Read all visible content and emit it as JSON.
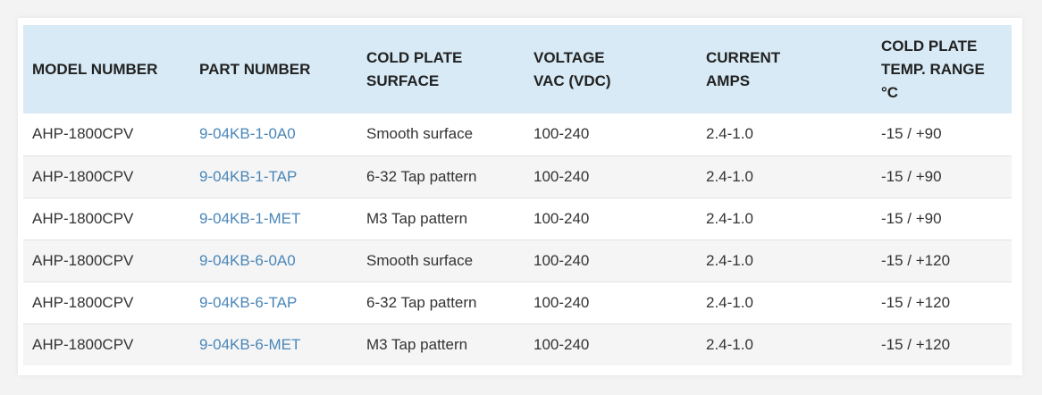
{
  "table": {
    "headers": [
      {
        "lines": [
          "MODEL NUMBER"
        ]
      },
      {
        "lines": [
          "PART NUMBER"
        ]
      },
      {
        "lines": [
          "COLD PLATE",
          "SURFACE"
        ]
      },
      {
        "lines": [
          "VOLTAGE",
          "VAC (VDC)"
        ]
      },
      {
        "lines": [
          "CURRENT",
          "AMPS"
        ]
      },
      {
        "lines": [
          "COLD PLATE",
          "TEMP. RANGE",
          "°C"
        ]
      }
    ],
    "rows": [
      {
        "model": "AHP-1800CPV",
        "part": "9-04KB-1-0A0",
        "surface": "Smooth surface",
        "voltage": "100-240",
        "current": "2.4-1.0",
        "temp": "-15 / +90"
      },
      {
        "model": "AHP-1800CPV",
        "part": "9-04KB-1-TAP",
        "surface": "6-32 Tap pattern",
        "voltage": "100-240",
        "current": "2.4-1.0",
        "temp": "-15 / +90"
      },
      {
        "model": "AHP-1800CPV",
        "part": "9-04KB-1-MET",
        "surface": "M3 Tap pattern",
        "voltage": "100-240",
        "current": "2.4-1.0",
        "temp": "-15 / +90"
      },
      {
        "model": "AHP-1800CPV",
        "part": "9-04KB-6-0A0",
        "surface": "Smooth surface",
        "voltage": "100-240",
        "current": "2.4-1.0",
        "temp": "-15 / +120"
      },
      {
        "model": "AHP-1800CPV",
        "part": "9-04KB-6-TAP",
        "surface": "6-32 Tap pattern",
        "voltage": "100-240",
        "current": "2.4-1.0",
        "temp": "-15 / +120"
      },
      {
        "model": "AHP-1800CPV",
        "part": "9-04KB-6-MET",
        "surface": "M3 Tap pattern",
        "voltage": "100-240",
        "current": "2.4-1.0",
        "temp": "-15 / +120"
      }
    ]
  },
  "colors": {
    "header_bg": "#d7eaf5",
    "link": "#4a86b8",
    "stripe": "#f5f5f5"
  }
}
